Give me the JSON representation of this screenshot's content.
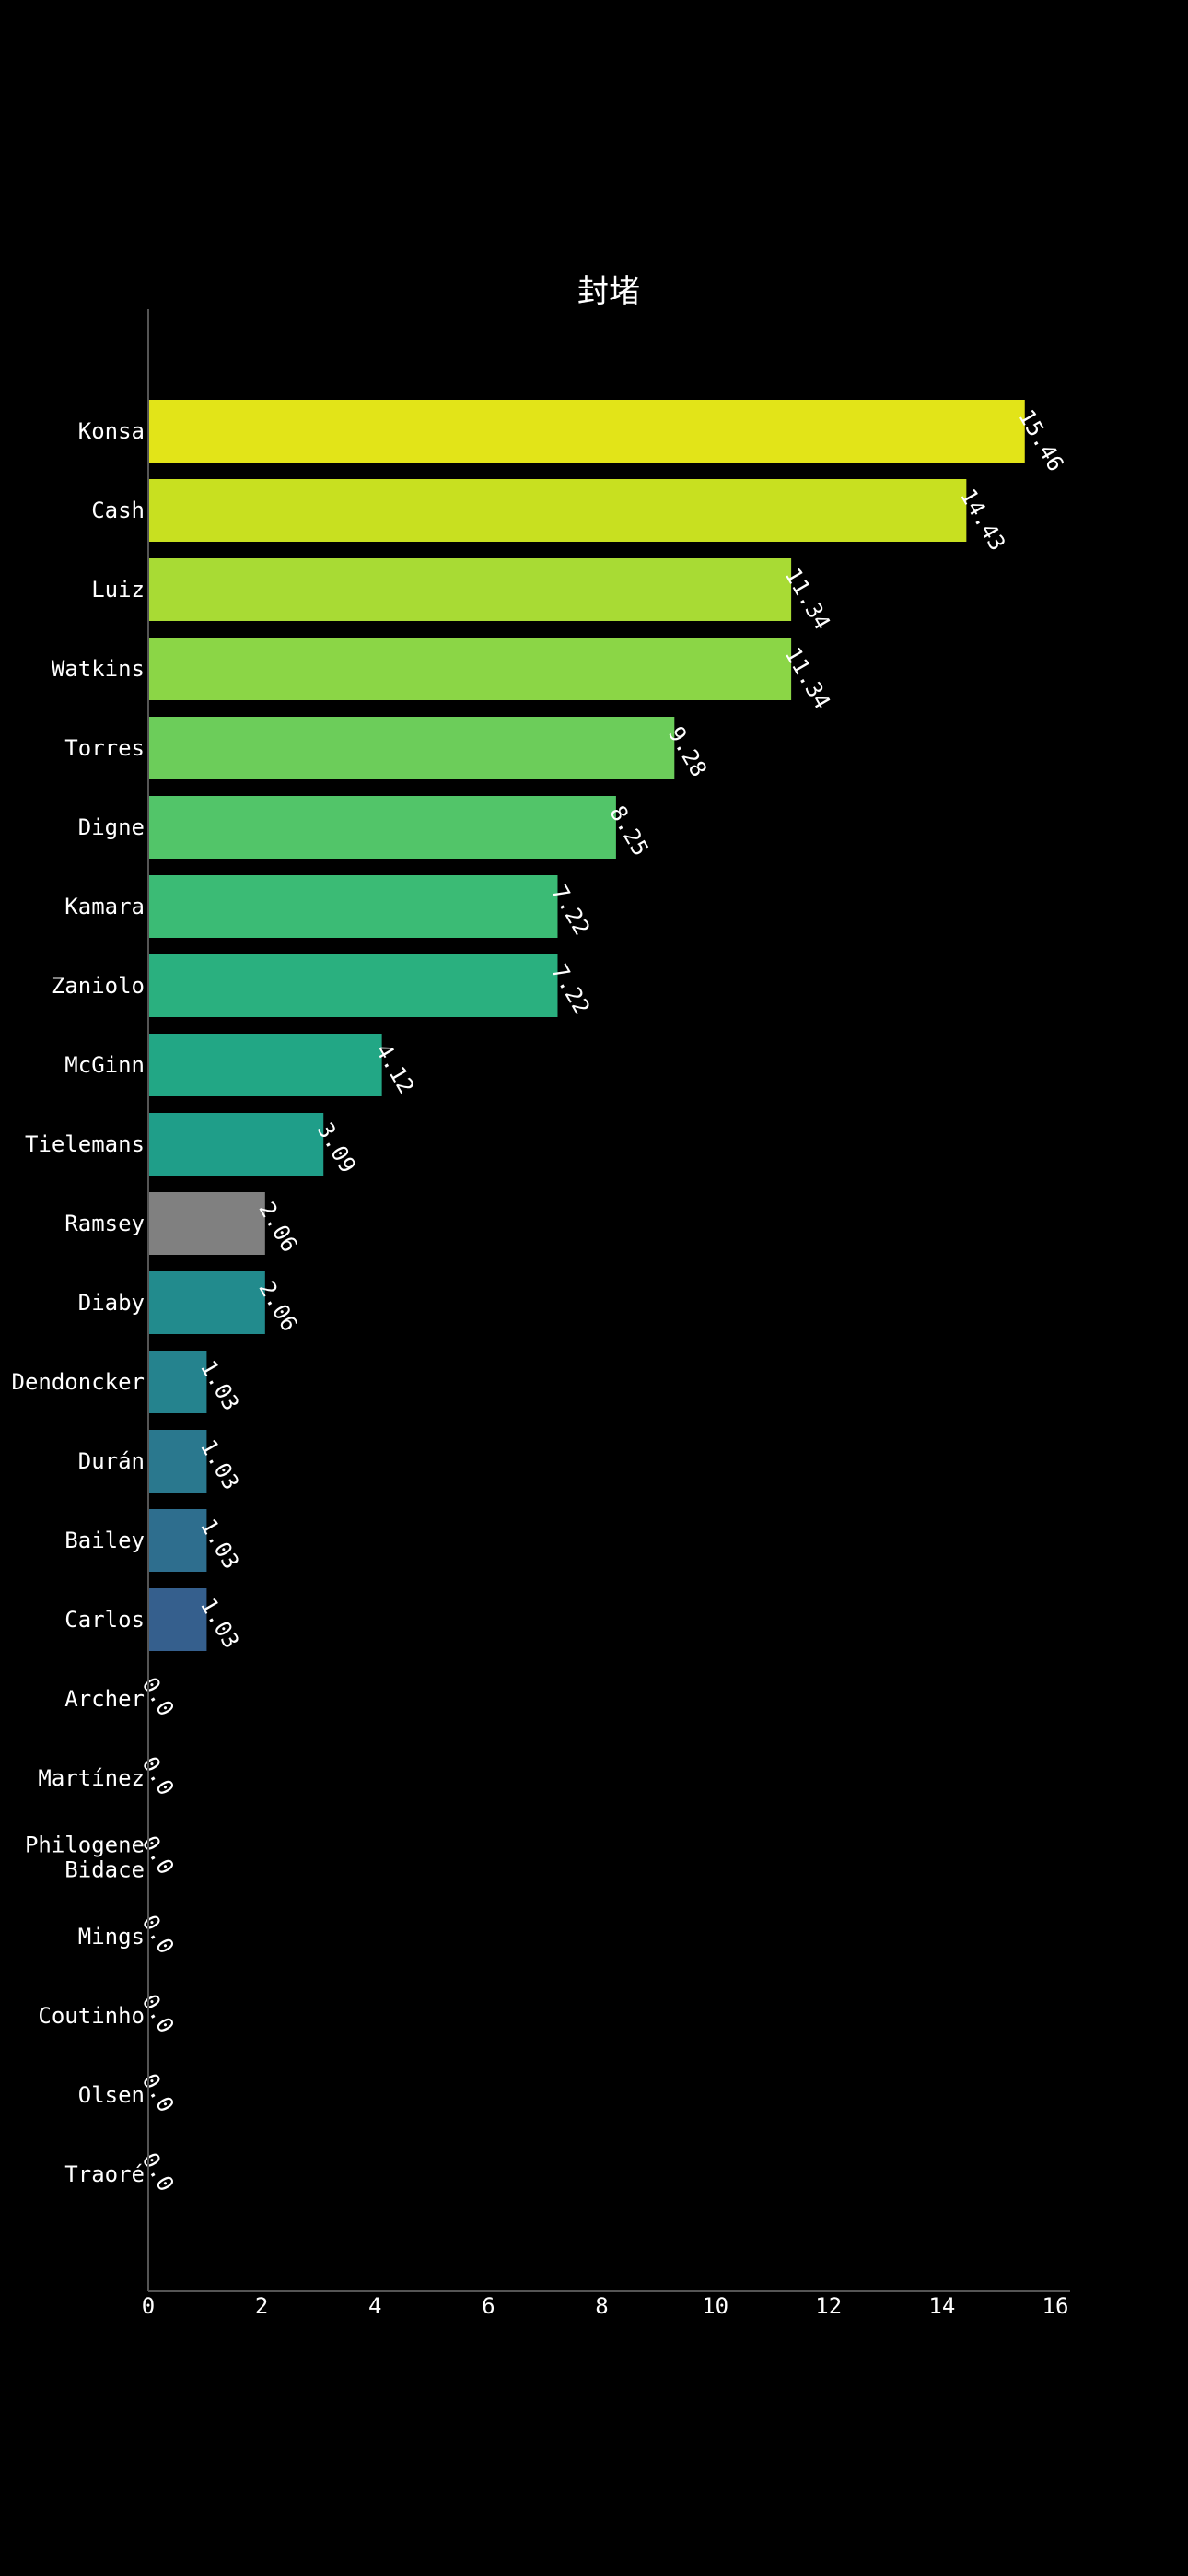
{
  "chart_data": {
    "type": "bar",
    "orientation": "horizontal",
    "title": "封堵",
    "xlabel": "",
    "ylabel": "",
    "xlim": [
      0,
      16
    ],
    "x_ticks": [
      0,
      2,
      4,
      6,
      8,
      10,
      12,
      14,
      16
    ],
    "grid": false,
    "legend": "none",
    "categories": [
      [
        "Konsa"
      ],
      [
        "Cash"
      ],
      [
        "Luiz"
      ],
      [
        "Watkins"
      ],
      [
        "Torres"
      ],
      [
        "Digne"
      ],
      [
        "Kamara"
      ],
      [
        "Zaniolo"
      ],
      [
        "McGinn"
      ],
      [
        "Tielemans"
      ],
      [
        "Ramsey"
      ],
      [
        "Diaby"
      ],
      [
        "Dendoncker"
      ],
      [
        "Durán"
      ],
      [
        "Bailey"
      ],
      [
        "Carlos"
      ],
      [
        "Archer"
      ],
      [
        "Martínez"
      ],
      [
        "Philogene",
        "Bidace"
      ],
      [
        "Mings"
      ],
      [
        "Coutinho"
      ],
      [
        "Olsen"
      ],
      [
        "Traoré"
      ]
    ],
    "values": [
      15.46,
      14.43,
      11.34,
      11.34,
      9.28,
      8.25,
      7.22,
      7.22,
      4.12,
      3.09,
      2.06,
      2.06,
      1.03,
      1.03,
      1.03,
      1.03,
      0.0,
      0.0,
      0.0,
      0.0,
      0.0,
      0.0,
      0.0
    ],
    "value_labels": [
      "15.46",
      "14.43",
      "11.34",
      "11.34",
      "9.28",
      "8.25",
      "7.22",
      "7.22",
      "4.12",
      "3.09",
      "2.06",
      "2.06",
      "1.03",
      "1.03",
      "1.03",
      "1.03",
      "0.0",
      "0.0",
      "0.0",
      "0.0",
      "0.0",
      "0.0",
      "0.0"
    ],
    "colors": [
      "#e2e418",
      "#c8e020",
      "#a8db34",
      "#8bd646",
      "#6ccd5a",
      "#52c569",
      "#3bbb75",
      "#2ab07f",
      "#22a785",
      "#1f9e89",
      "#808080",
      "#228b8d",
      "#25838e",
      "#2a788e",
      "#2e6e8e",
      "#355f8d",
      "#3e4c8a",
      "#443b84",
      "#472c7a",
      "#481a6c",
      "#46085c",
      "#440154",
      "#440154"
    ]
  }
}
